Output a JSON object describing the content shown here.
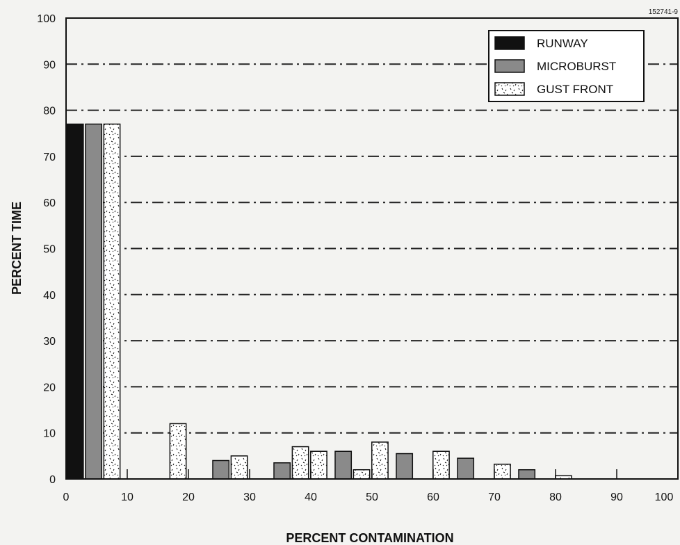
{
  "figure_id": "152741-9",
  "chart_data": {
    "type": "bar",
    "title": "",
    "xlabel": "PERCENT CONTAMINATION",
    "ylabel": "PERCENT TIME",
    "xlim": [
      0,
      100
    ],
    "ylim": [
      0,
      100
    ],
    "x_ticks": [
      "0",
      "10",
      "20",
      "30",
      "40",
      "50",
      "60",
      "70",
      "80",
      "90",
      "100"
    ],
    "y_ticks": [
      "0",
      "10",
      "20",
      "30",
      "40",
      "50",
      "60",
      "70",
      "80",
      "90",
      "100"
    ],
    "grid": "dash-dot horizontal",
    "legend_position": "top-right",
    "series": [
      {
        "name": "RUNWAY",
        "color": "#111111",
        "x": [
          1.5
        ],
        "values": [
          77
        ]
      },
      {
        "name": "MICROBURST",
        "color": "#8a8a8a",
        "x": [
          4.5,
          25.3,
          35.3,
          45.3,
          55.3,
          65.3,
          75.3
        ],
        "values": [
          77,
          4,
          3.5,
          6,
          5.5,
          4.5,
          2
        ]
      },
      {
        "name": "GUST FRONT",
        "color": "#ffffff",
        "x": [
          7.5,
          18.3,
          28.3,
          38.3,
          41.3,
          48.3,
          51.3,
          61.3,
          71.3,
          81.3
        ],
        "values": [
          77,
          12,
          5,
          7,
          6,
          2,
          8,
          6,
          3.2,
          0.7
        ]
      }
    ]
  }
}
